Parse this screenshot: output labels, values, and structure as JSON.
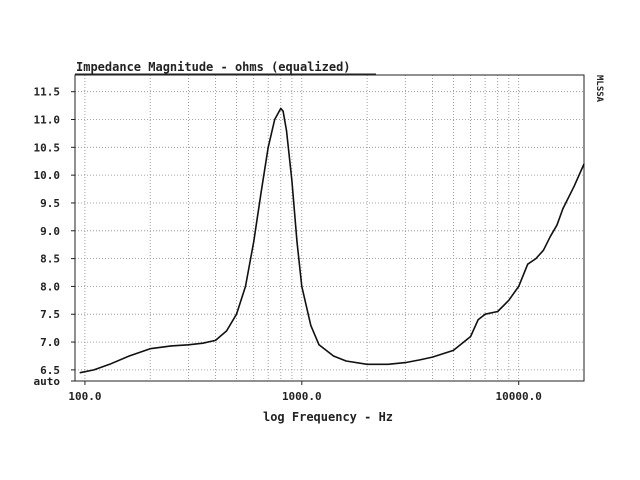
{
  "chart_data": {
    "type": "line",
    "title": "Impedance Magnitude - ohms (equalized)",
    "xlabel": "log Frequency - Hz",
    "ylabel": "",
    "x_scale": "log",
    "xlim": [
      90,
      20000
    ],
    "ylim": [
      6.3,
      11.8
    ],
    "x_ticks": [
      {
        "value": 100,
        "label": "100.0"
      },
      {
        "value": 1000,
        "label": "1000.0"
      },
      {
        "value": 10000,
        "label": "10000.0"
      }
    ],
    "y_ticks": [
      {
        "value": 6.3,
        "label": "auto"
      },
      {
        "value": 6.5,
        "label": "6.5"
      },
      {
        "value": 7.0,
        "label": "7.0"
      },
      {
        "value": 7.5,
        "label": "7.5"
      },
      {
        "value": 8.0,
        "label": "8.0"
      },
      {
        "value": 8.5,
        "label": "8.5"
      },
      {
        "value": 9.0,
        "label": "9.0"
      },
      {
        "value": 9.5,
        "label": "9.5"
      },
      {
        "value": 10.0,
        "label": "10.0"
      },
      {
        "value": 10.5,
        "label": "10.5"
      },
      {
        "value": 11.0,
        "label": "11.0"
      },
      {
        "value": 11.5,
        "label": "11.5"
      }
    ],
    "side_label": "MLSSA",
    "grid": true,
    "series": [
      {
        "points": [
          [
            95,
            6.45
          ],
          [
            110,
            6.5
          ],
          [
            130,
            6.6
          ],
          [
            160,
            6.75
          ],
          [
            200,
            6.88
          ],
          [
            250,
            6.93
          ],
          [
            300,
            6.95
          ],
          [
            350,
            6.98
          ],
          [
            400,
            7.03
          ],
          [
            450,
            7.2
          ],
          [
            500,
            7.5
          ],
          [
            550,
            8.0
          ],
          [
            600,
            8.8
          ],
          [
            650,
            9.7
          ],
          [
            700,
            10.5
          ],
          [
            750,
            11.0
          ],
          [
            800,
            11.2
          ],
          [
            820,
            11.15
          ],
          [
            850,
            10.8
          ],
          [
            900,
            9.9
          ],
          [
            950,
            8.8
          ],
          [
            1000,
            8.0
          ],
          [
            1100,
            7.3
          ],
          [
            1200,
            6.95
          ],
          [
            1400,
            6.75
          ],
          [
            1600,
            6.66
          ],
          [
            2000,
            6.6
          ],
          [
            2500,
            6.6
          ],
          [
            3000,
            6.63
          ],
          [
            3500,
            6.68
          ],
          [
            4000,
            6.73
          ],
          [
            5000,
            6.85
          ],
          [
            6000,
            7.1
          ],
          [
            6500,
            7.4
          ],
          [
            7000,
            7.5
          ],
          [
            8000,
            7.55
          ],
          [
            9000,
            7.75
          ],
          [
            10000,
            8.0
          ],
          [
            11000,
            8.4
          ],
          [
            12000,
            8.5
          ],
          [
            13000,
            8.65
          ],
          [
            14000,
            8.9
          ],
          [
            15000,
            9.1
          ],
          [
            16000,
            9.4
          ],
          [
            18000,
            9.8
          ],
          [
            20000,
            10.2
          ]
        ]
      }
    ]
  }
}
